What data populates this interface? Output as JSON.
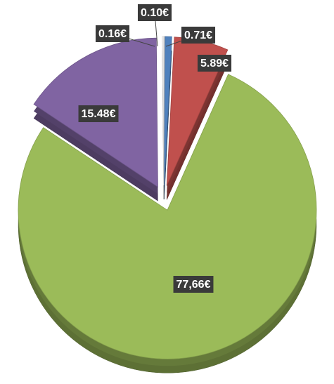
{
  "chart_data": {
    "type": "pie",
    "categories": [
      "0.10",
      "0.71",
      "5.89",
      "77.66",
      "15.48",
      "0.16"
    ],
    "values": [
      0.1,
      0.71,
      5.89,
      77.66,
      15.48,
      0.16
    ],
    "value_labels": [
      "0.10€",
      "0.71€",
      "5.89€",
      "77,66€",
      "15.48€",
      "0.16€"
    ],
    "colors": [
      "#d9d9d9",
      "#4f81bd",
      "#c0504d",
      "#9bbb59",
      "#8064a2",
      "#f2f2f2"
    ]
  }
}
